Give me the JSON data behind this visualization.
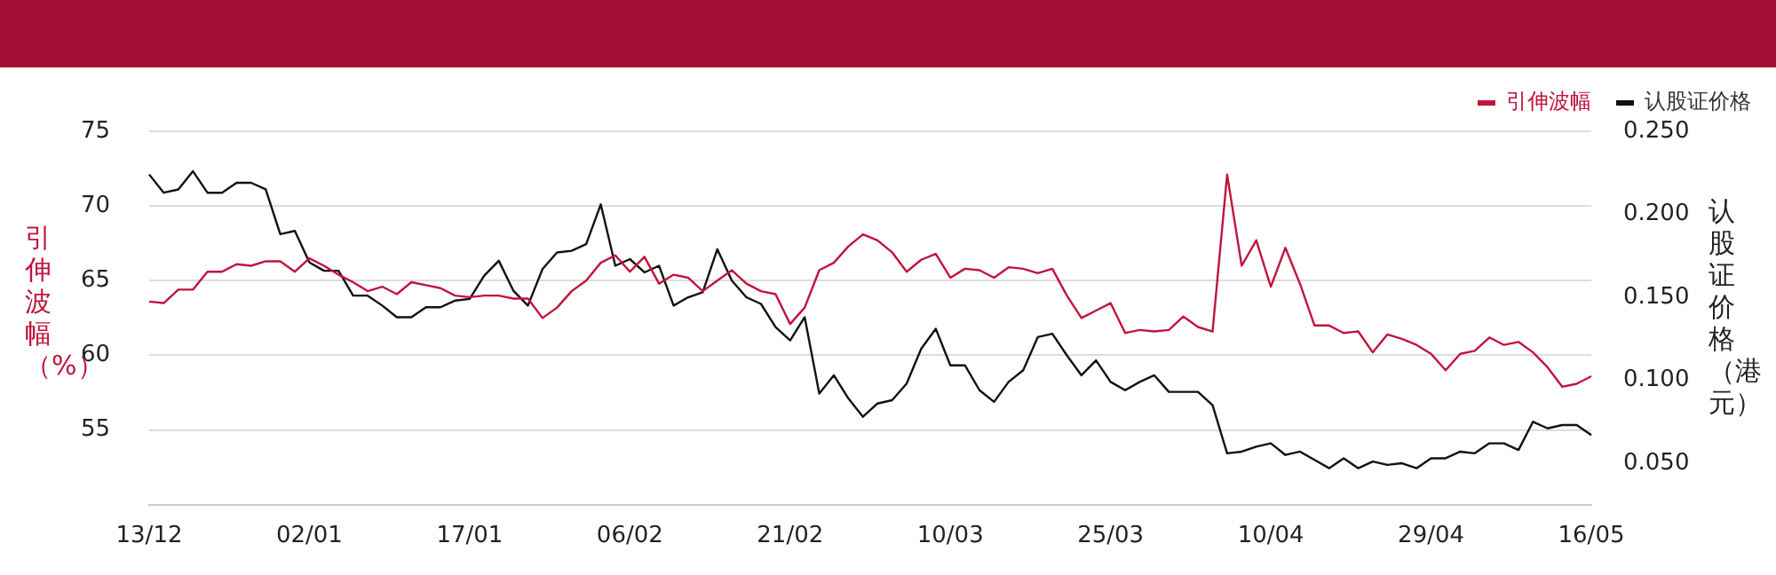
{
  "chart_data": {
    "type": "line",
    "categories": [
      "13/12",
      null,
      null,
      null,
      null,
      null,
      null,
      null,
      null,
      null,
      null,
      "02/01",
      null,
      null,
      null,
      null,
      null,
      null,
      null,
      null,
      null,
      null,
      "17/01",
      null,
      null,
      null,
      null,
      null,
      null,
      null,
      null,
      null,
      null,
      "06/02",
      null,
      null,
      null,
      null,
      null,
      null,
      null,
      null,
      null,
      null,
      "21/02",
      null,
      null,
      null,
      null,
      null,
      null,
      null,
      null,
      null,
      null,
      "10/03",
      null,
      null,
      null,
      null,
      null,
      null,
      null,
      null,
      null,
      null,
      "25/03",
      null,
      null,
      null,
      null,
      null,
      null,
      null,
      null,
      null,
      null,
      "10/04",
      null,
      null,
      null,
      null,
      null,
      null,
      null,
      null,
      null,
      null,
      "29/04",
      null,
      null,
      null,
      null,
      null,
      null,
      null,
      null,
      null,
      null,
      "16/05"
    ],
    "series": [
      {
        "name": "引伸波幅",
        "color": "#c0143c",
        "values": [
          63.6,
          63.5,
          64.4,
          64.4,
          65.6,
          65.6,
          66.1,
          66.0,
          66.3,
          66.3,
          65.6,
          66.5,
          66.0,
          65.4,
          64.9,
          64.3,
          64.6,
          64.1,
          64.9,
          64.7,
          64.5,
          64.0,
          63.9,
          64.0,
          64.0,
          63.8,
          63.8,
          62.5,
          63.2,
          64.3,
          65.0,
          66.2,
          66.7,
          65.6,
          66.6,
          64.8,
          65.4,
          65.2,
          64.3,
          65.0,
          65.7,
          64.8,
          64.3,
          64.1,
          62.1,
          63.2,
          65.7,
          66.2,
          67.3,
          68.1,
          67.7,
          66.9,
          65.6,
          66.4,
          66.8,
          65.2,
          65.8,
          65.7,
          65.2,
          65.9,
          65.8,
          65.5,
          65.8,
          64.0,
          62.5,
          63.0,
          63.5,
          61.5,
          61.7,
          61.6,
          61.7,
          62.6,
          61.9,
          61.6,
          72.1,
          66.0,
          67.7,
          64.6,
          67.2,
          64.8,
          62.0,
          62.0,
          61.5,
          61.6,
          60.2,
          61.4,
          61.1,
          60.7,
          60.1,
          59.0,
          60.1,
          60.3,
          61.2,
          60.7,
          60.9,
          60.2,
          59.2,
          57.9,
          58.1,
          58.6
        ]
      },
      {
        "name": "认股证价格",
        "color": "#111111",
        "axis": "y2",
        "values": [
          0.224,
          0.213,
          0.215,
          0.226,
          0.213,
          0.213,
          0.219,
          0.219,
          0.215,
          0.188,
          0.19,
          0.171,
          0.166,
          0.166,
          0.151,
          0.151,
          0.145,
          0.138,
          0.138,
          0.144,
          0.144,
          0.148,
          0.149,
          0.163,
          0.172,
          0.154,
          0.145,
          0.167,
          0.177,
          0.178,
          0.182,
          0.206,
          0.169,
          0.173,
          0.165,
          0.169,
          0.145,
          0.15,
          0.153,
          0.179,
          0.16,
          0.15,
          0.146,
          0.132,
          0.124,
          0.138,
          0.092,
          0.103,
          0.089,
          0.078,
          0.086,
          0.088,
          0.098,
          0.119,
          0.131,
          0.109,
          0.109,
          0.094,
          0.087,
          0.099,
          0.106,
          0.126,
          0.128,
          0.115,
          0.103,
          0.112,
          0.099,
          0.094,
          0.099,
          0.103,
          0.093,
          0.093,
          0.093,
          0.085,
          0.056,
          0.057,
          0.06,
          0.062,
          0.055,
          0.057,
          0.052,
          0.047,
          0.053,
          0.047,
          0.051,
          0.049,
          0.05,
          0.047,
          0.053,
          0.053,
          0.057,
          0.056,
          0.062,
          0.062,
          0.058,
          0.075,
          0.071,
          0.073,
          0.073,
          0.067
        ]
      }
    ],
    "ylabel": "引伸波幅（%）",
    "y2label": "认股证价格（港元）",
    "ylim": [
      50,
      75
    ],
    "yticks": [
      55,
      60,
      65,
      70,
      75
    ],
    "y2lim": [
      0.025,
      0.25
    ],
    "y2ticks": [
      {
        "value": 0.05,
        "label": "0.050"
      },
      {
        "value": 0.1,
        "label": "0.100"
      },
      {
        "value": 0.15,
        "label": "0.150"
      },
      {
        "value": 0.2,
        "label": "0.200"
      },
      {
        "value": 0.25,
        "label": "0.250"
      }
    ],
    "grid": "y",
    "legend": "top right",
    "marker": "none",
    "line_style": "solid"
  }
}
